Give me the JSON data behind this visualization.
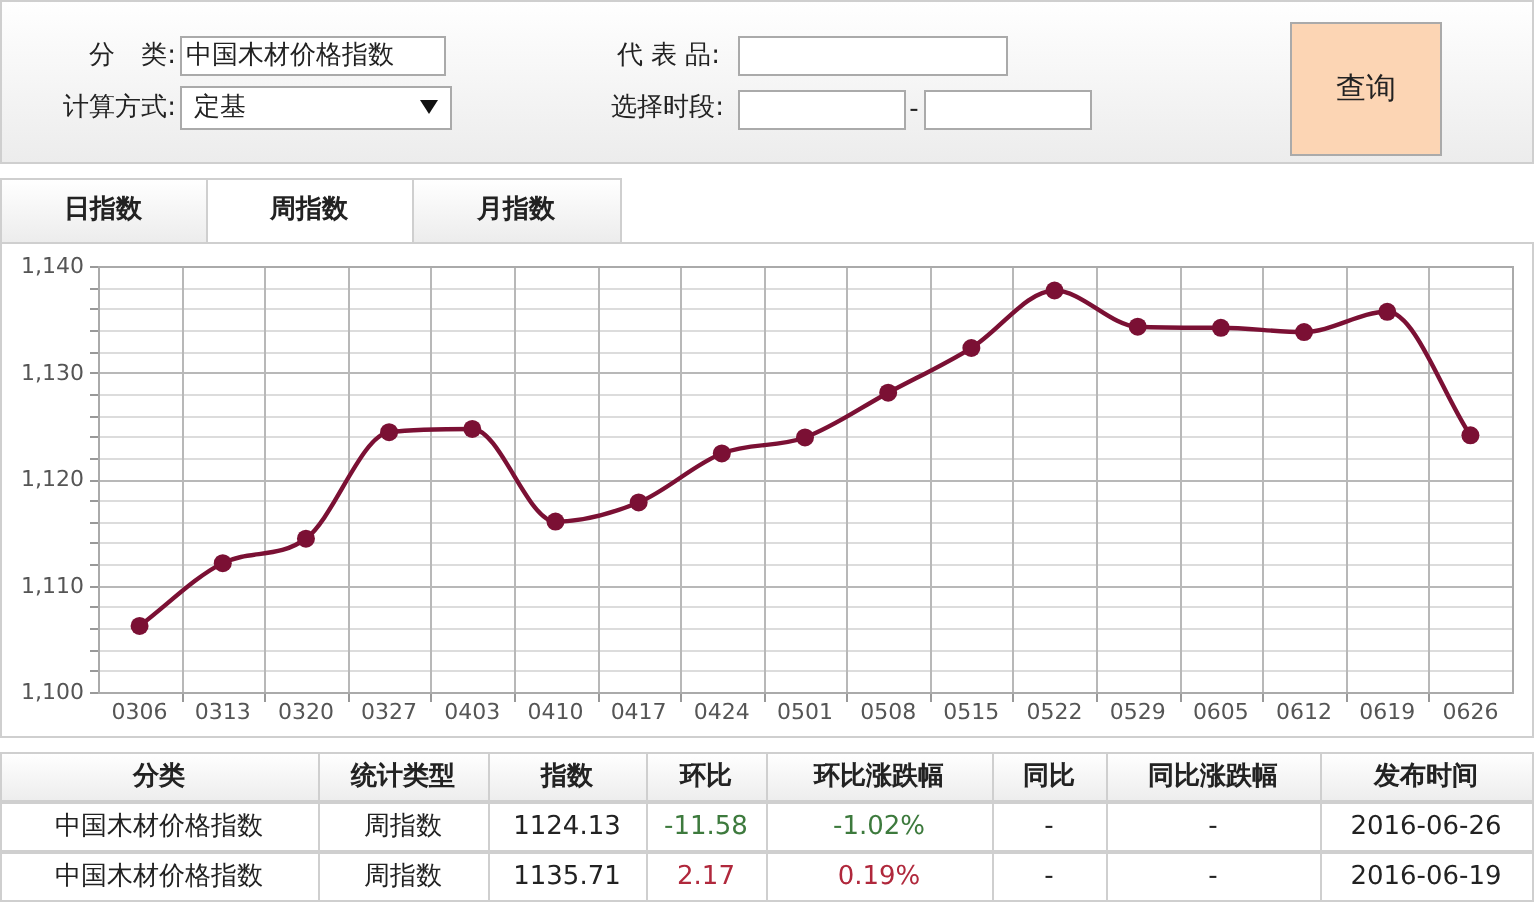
{
  "chart_data": [
    {
      "type": "other",
      "annotations": [
        "分　类:",
        "中国木材价格指数",
        "计算方式:",
        "定基",
        "代 表 品:",
        "选择时段:",
        "-",
        "查询",
        "日指数",
        "周指数",
        "月指数"
      ]
    },
    {
      "type": "line",
      "categories": [
        "0306",
        "0313",
        "0320",
        "0327",
        "0403",
        "0410",
        "0417",
        "0424",
        "0501",
        "0508",
        "0515",
        "0522",
        "0529",
        "0605",
        "0612",
        "0619",
        "0626"
      ],
      "values": [
        1106.2,
        1112.1,
        1114.4,
        1124.4,
        1124.7,
        1116.0,
        1117.8,
        1122.4,
        1123.9,
        1128.1,
        1132.3,
        1137.7,
        1134.3,
        1134.2,
        1133.8,
        1135.7,
        1124.1
      ],
      "color": "#7b1034",
      "marker": "circle",
      "grid": true,
      "ylim": [
        1100,
        1140
      ],
      "yticks": [
        {
          "value": 1100,
          "label": "1,100"
        },
        {
          "value": 1102,
          "label": null
        },
        {
          "value": 1104,
          "label": null
        },
        {
          "value": 1106,
          "label": null
        },
        {
          "value": 1108,
          "label": null
        },
        {
          "value": 1110,
          "label": "1,110"
        },
        {
          "value": 1112,
          "label": null
        },
        {
          "value": 1114,
          "label": null
        },
        {
          "value": 1116,
          "label": null
        },
        {
          "value": 1118,
          "label": null
        },
        {
          "value": 1120,
          "label": "1,120"
        },
        {
          "value": 1122,
          "label": null
        },
        {
          "value": 1124,
          "label": null
        },
        {
          "value": 1126,
          "label": null
        },
        {
          "value": 1128,
          "label": null
        },
        {
          "value": 1130,
          "label": "1,130"
        },
        {
          "value": 1132,
          "label": null
        },
        {
          "value": 1134,
          "label": null
        },
        {
          "value": 1136,
          "label": null
        },
        {
          "value": 1138,
          "label": null
        },
        {
          "value": 1140,
          "label": "1,140"
        }
      ]
    },
    {
      "type": "other",
      "annotations": [
        "分类",
        "统计类型",
        "指数",
        "环比",
        "环比涨跌幅",
        "同比",
        "同比涨跌幅",
        "发布时间",
        "中国木材价格指数",
        "周指数",
        "1124.13",
        "-11.58",
        "-1.02%",
        "-",
        "-",
        "2016-06-26",
        "中国木材价格指数",
        "周指数",
        "1135.71",
        "2.17",
        "0.19%",
        "-",
        "-",
        "2016-06-19"
      ]
    }
  ]
}
